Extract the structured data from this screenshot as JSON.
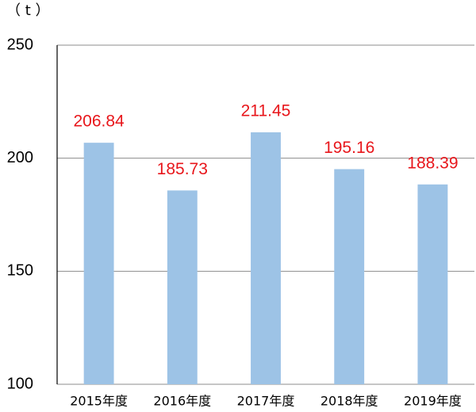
{
  "chart_data": {
    "type": "bar",
    "y_label": "（ t ）",
    "categories": [
      "2015年度",
      "2016年度",
      "2017年度",
      "2018年度",
      "2019年度"
    ],
    "values": [
      206.84,
      185.73,
      211.45,
      195.16,
      188.39
    ],
    "color": "#9dc3e6",
    "label_color": "#e8161b",
    "ylim": [
      100,
      250
    ],
    "yticks": [
      100,
      150,
      200,
      250
    ],
    "grid": true
  }
}
